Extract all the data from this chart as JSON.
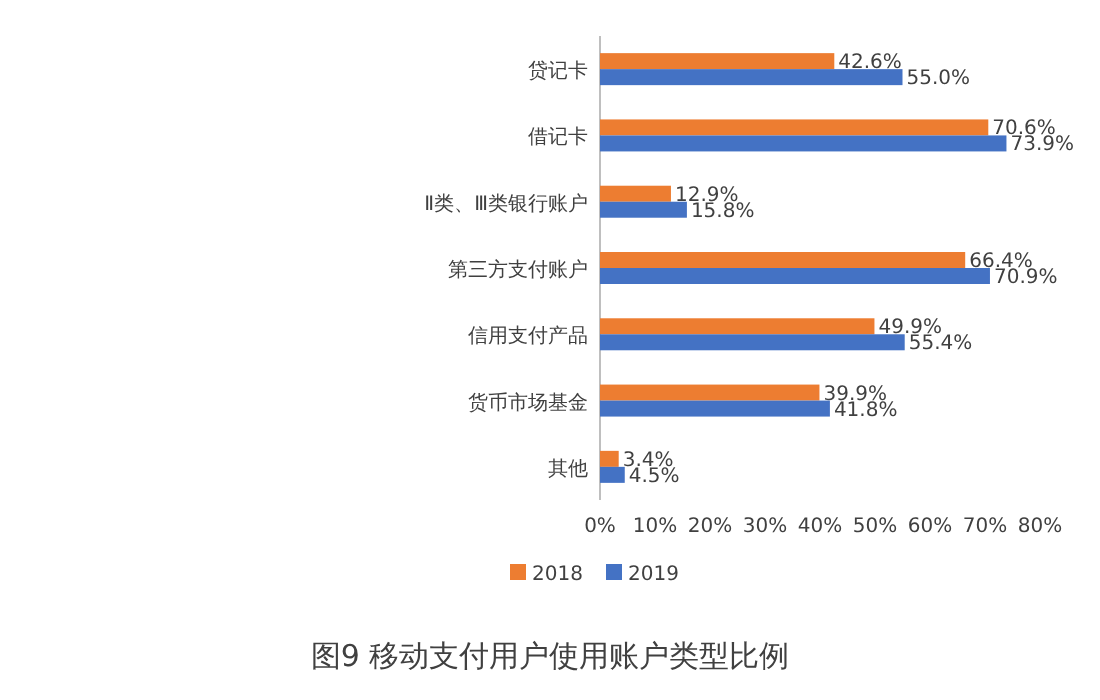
{
  "chart_data": {
    "type": "bar",
    "orientation": "horizontal",
    "title": "图9 移动支付用户使用账户类型比例",
    "categories": [
      "贷记卡",
      "借记卡",
      "Ⅱ类、Ⅲ类银行账户",
      "第三方支付账户",
      "信用支付产品",
      "货币市场基金",
      "其他"
    ],
    "series": [
      {
        "name": "2018",
        "color": "#ed7d31",
        "values": [
          42.6,
          70.6,
          12.9,
          66.4,
          49.9,
          39.9,
          3.4
        ],
        "value_labels": [
          "42.6%",
          "70.6%",
          "12.9%",
          "66.4%",
          "49.9%",
          "39.9%",
          "3.4%"
        ]
      },
      {
        "name": "2019",
        "color": "#4472c4",
        "values": [
          55.0,
          73.9,
          15.8,
          70.9,
          55.4,
          41.8,
          4.5
        ],
        "value_labels": [
          "55.0%",
          "73.9%",
          "15.8%",
          "70.9%",
          "55.4%",
          "41.8%",
          "4.5%"
        ]
      }
    ],
    "xlim": [
      0,
      80
    ],
    "xticks": [
      {
        "value": 0,
        "label": "0%"
      },
      {
        "value": 10,
        "label": "10%"
      },
      {
        "value": 20,
        "label": "20%"
      },
      {
        "value": 30,
        "label": "30%"
      },
      {
        "value": 40,
        "label": "40%"
      },
      {
        "value": 50,
        "label": "50%"
      },
      {
        "value": 60,
        "label": "60%"
      },
      {
        "value": 70,
        "label": "70%"
      },
      {
        "value": 80,
        "label": "80%"
      }
    ],
    "legend": "bottom"
  }
}
